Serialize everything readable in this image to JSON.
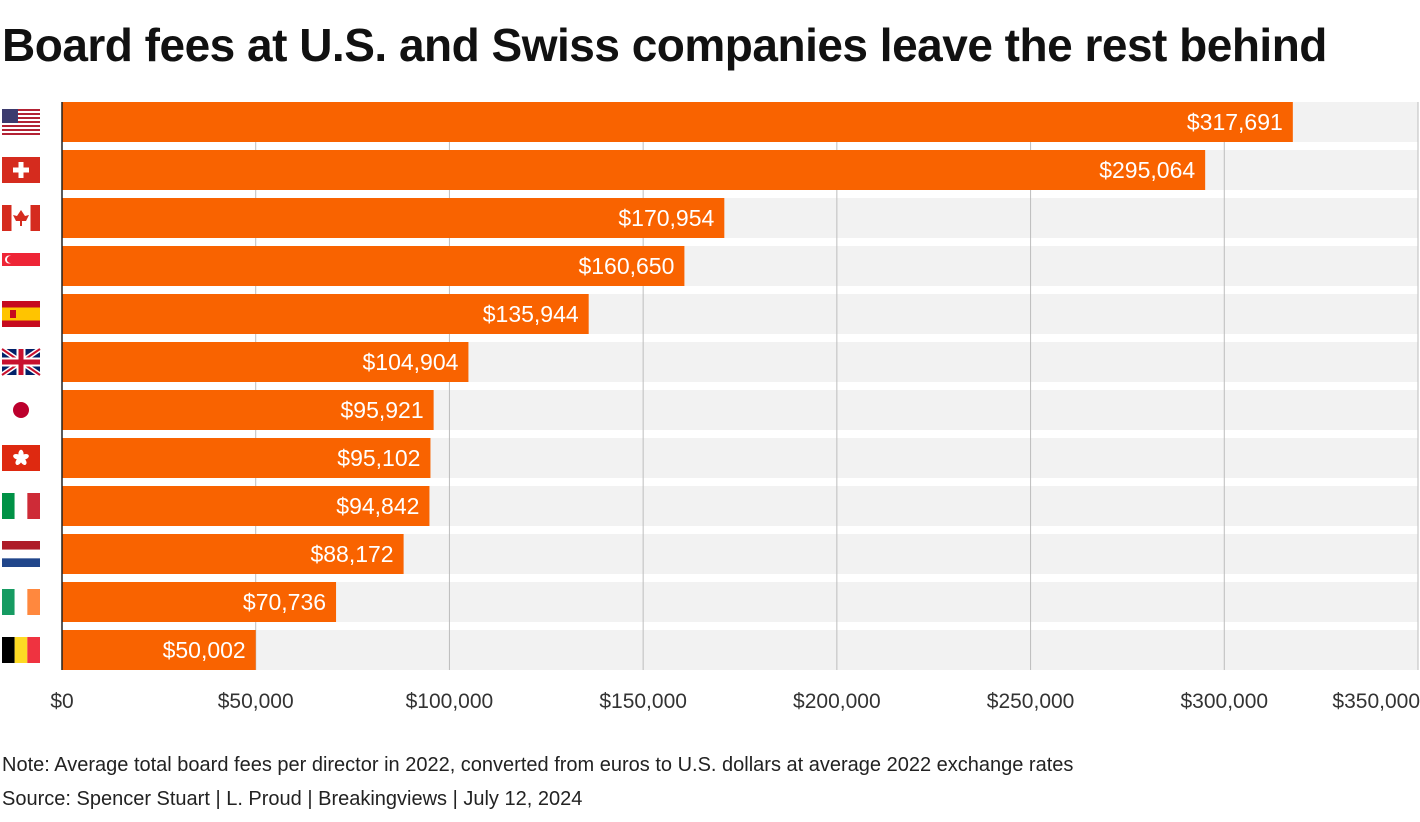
{
  "title": "Board fees at U.S. and Swiss companies leave the rest behind",
  "note": "Note: Average total board fees per director in 2022, converted from euros to U.S. dollars at average 2022 exchange rates",
  "source": "Source: Spencer Stuart | L. Proud | Breakingviews | July 12, 2024",
  "colors": {
    "bar": "#f96300",
    "track": "#f2f2f2",
    "grid": "#bdbdbd",
    "axis": "#222222"
  },
  "chart_data": {
    "type": "bar",
    "orientation": "horizontal",
    "title": "Board fees at U.S. and Swiss companies leave the rest behind",
    "xlabel": "",
    "ylabel": "",
    "xlim": [
      0,
      350000
    ],
    "x_ticks": [
      0,
      50000,
      100000,
      150000,
      200000,
      250000,
      300000,
      350000
    ],
    "x_tick_labels": [
      "$0",
      "$50,000",
      "$100,000",
      "$150,000",
      "$200,000",
      "$250,000",
      "$300,000",
      "$350,000"
    ],
    "grid": true,
    "categories": [
      {
        "flag": "united-states-flag-icon",
        "value": 317691,
        "label": "$317,691"
      },
      {
        "flag": "switzerland-flag-icon",
        "value": 295064,
        "label": "$295,064"
      },
      {
        "flag": "canada-flag-icon",
        "value": 170954,
        "label": "$170,954"
      },
      {
        "flag": "singapore-flag-icon",
        "value": 160650,
        "label": "$160,650"
      },
      {
        "flag": "spain-flag-icon",
        "value": 135944,
        "label": "$135,944"
      },
      {
        "flag": "united-kingdom-flag-icon",
        "value": 104904,
        "label": "$104,904"
      },
      {
        "flag": "japan-flag-icon",
        "value": 95921,
        "label": "$95,921"
      },
      {
        "flag": "hong-kong-flag-icon",
        "value": 95102,
        "label": "$95,102"
      },
      {
        "flag": "italy-flag-icon",
        "value": 94842,
        "label": "$94,842"
      },
      {
        "flag": "netherlands-flag-icon",
        "value": 88172,
        "label": "$88,172"
      },
      {
        "flag": "ireland-flag-icon",
        "value": 70736,
        "label": "$70,736"
      },
      {
        "flag": "belgium-flag-icon",
        "value": 50002,
        "label": "$50,002"
      }
    ]
  }
}
